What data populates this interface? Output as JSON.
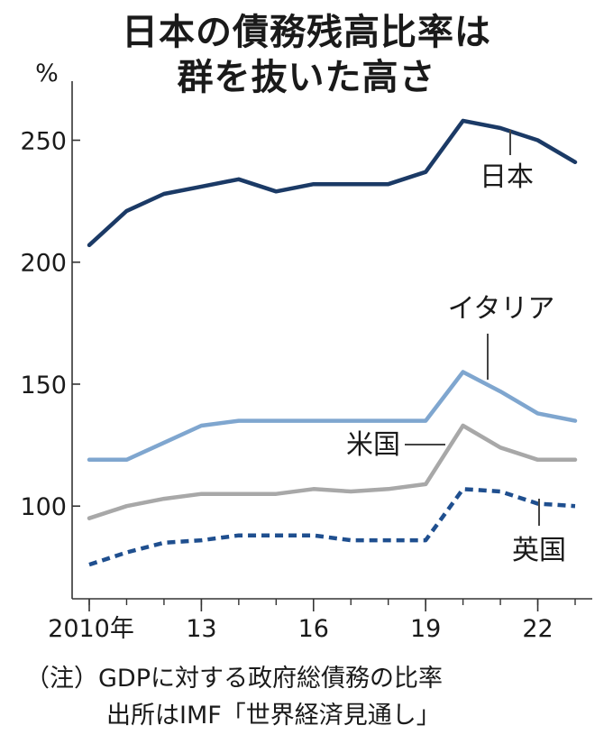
{
  "title_line1": "日本の債務残高比率は",
  "title_line2": "群を抜いた高さ",
  "notes": {
    "line1": "（注）GDPに対する政府総債務の比率",
    "line2": "出所はIMF「世界経済見通し」"
  },
  "chart_data": {
    "type": "line",
    "ylabel": "%",
    "ylim": [
      62,
      272
    ],
    "yticks": [
      100,
      150,
      200,
      250
    ],
    "xlim": [
      2010,
      2023
    ],
    "xticks": [
      {
        "x": 2010,
        "label": "2010年"
      },
      {
        "x": 2013,
        "label": "13"
      },
      {
        "x": 2016,
        "label": "16"
      },
      {
        "x": 2019,
        "label": "19"
      },
      {
        "x": 2022,
        "label": "22"
      }
    ],
    "x": [
      2010,
      2011,
      2012,
      2013,
      2014,
      2015,
      2016,
      2017,
      2018,
      2019,
      2020,
      2021,
      2022,
      2023
    ],
    "series": [
      {
        "name": "日本",
        "color": "#1b3a66",
        "style": "solid",
        "values": [
          207,
          221,
          228,
          231,
          234,
          229,
          232,
          232,
          232,
          237,
          258,
          255,
          250,
          241
        ]
      },
      {
        "name": "イタリア",
        "color": "#7fa6cf",
        "style": "solid",
        "values": [
          119,
          119,
          126,
          133,
          135,
          135,
          135,
          135,
          135,
          135,
          155,
          147,
          138,
          135
        ]
      },
      {
        "name": "米国",
        "color": "#a8a8a8",
        "style": "solid",
        "values": [
          95,
          100,
          103,
          105,
          105,
          105,
          107,
          106,
          107,
          109,
          133,
          124,
          119,
          119
        ]
      },
      {
        "name": "英国",
        "color": "#1f4f8f",
        "style": "dashed",
        "values": [
          76,
          81,
          85,
          86,
          88,
          88,
          88,
          86,
          86,
          86,
          107,
          106,
          101,
          100
        ]
      }
    ]
  }
}
